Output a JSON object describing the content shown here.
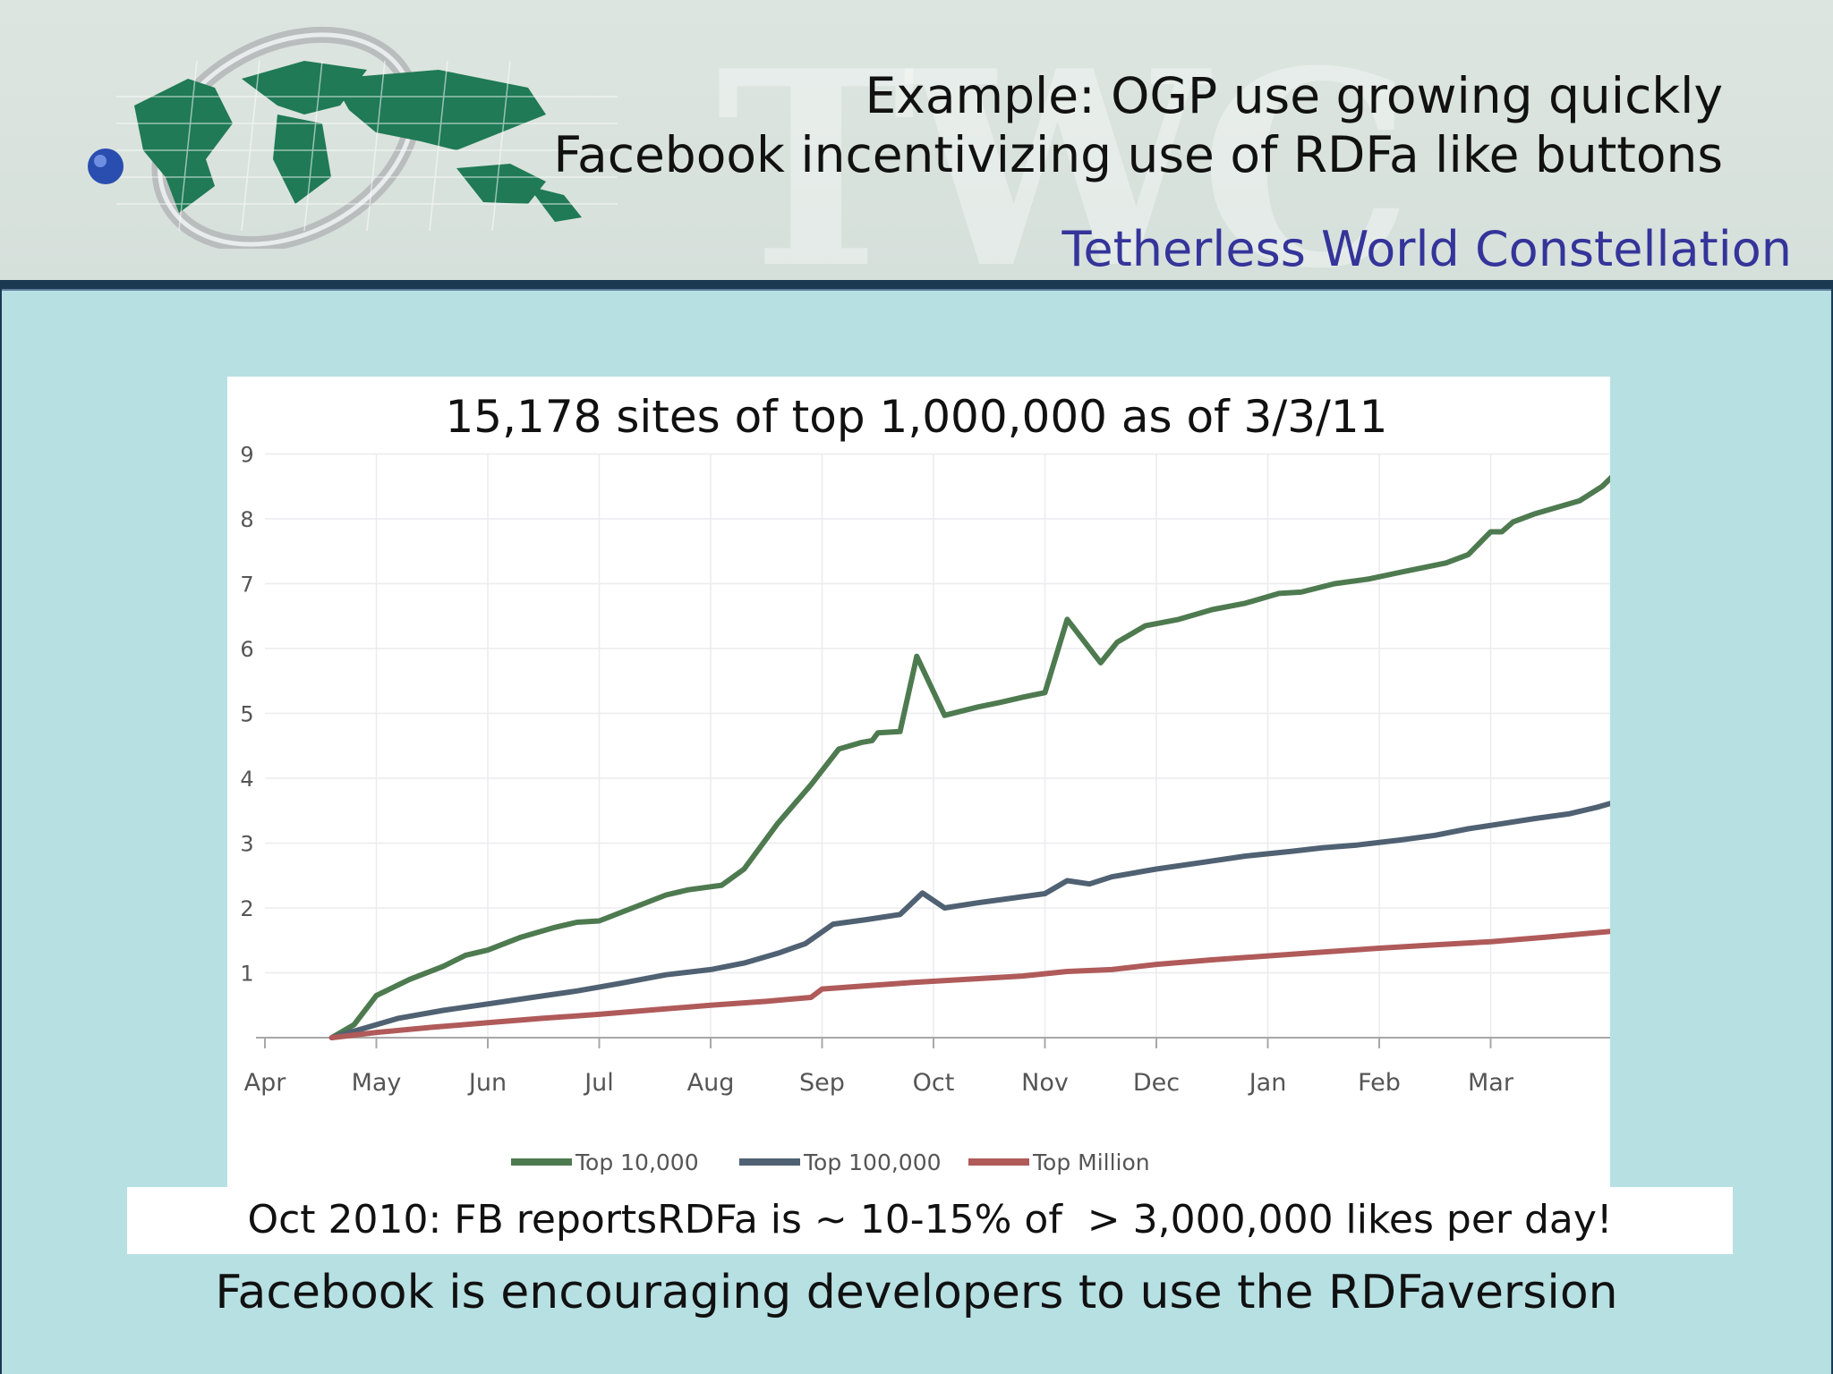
{
  "header": {
    "title_line_1": "Example: OGP use growing quickly",
    "title_line_2": "Facebook incentivizing use of RDFa like buttons",
    "organization": "Tetherless World Constellation",
    "watermark": "TWC"
  },
  "colors": {
    "background": "#b7e0e3",
    "divider": "#1b3a52",
    "organization_text": "#34349a",
    "logo_map": "#1f7a55",
    "logo_dot": "#2a4db0"
  },
  "icons": {
    "logo": "globe-map-logo"
  },
  "chart_data": {
    "type": "line",
    "title": "15,178 sites of top 1,000,000 as of 3/3/11",
    "xlabel": "",
    "ylabel": "",
    "x_ticks": [
      "Apr",
      "May",
      "Jun",
      "Jul",
      "Aug",
      "Sep",
      "Oct",
      "Nov",
      "Dec",
      "Jan",
      "Feb",
      "Mar"
    ],
    "y_ticks": [
      "1",
      "2",
      "3",
      "4",
      "5",
      "6",
      "7",
      "8",
      "9"
    ],
    "ylim": [
      0,
      9
    ],
    "xlim": [
      0,
      12
    ],
    "grid": true,
    "legend_position": "bottom",
    "series": [
      {
        "name": "Top 10,000",
        "color": "#4e7a50",
        "points": [
          [
            0.6,
            0
          ],
          [
            0.8,
            0.2
          ],
          [
            1.0,
            0.65
          ],
          [
            1.3,
            0.9
          ],
          [
            1.6,
            1.1
          ],
          [
            1.8,
            1.27
          ],
          [
            2.0,
            1.35
          ],
          [
            2.3,
            1.55
          ],
          [
            2.6,
            1.7
          ],
          [
            2.8,
            1.78
          ],
          [
            3.0,
            1.8
          ],
          [
            3.3,
            2.0
          ],
          [
            3.6,
            2.2
          ],
          [
            3.8,
            2.28
          ],
          [
            4.1,
            2.35
          ],
          [
            4.3,
            2.6
          ],
          [
            4.6,
            3.3
          ],
          [
            4.9,
            3.9
          ],
          [
            5.15,
            4.45
          ],
          [
            5.35,
            4.55
          ],
          [
            5.45,
            4.58
          ],
          [
            5.5,
            4.7
          ],
          [
            5.7,
            4.72
          ],
          [
            5.85,
            5.88
          ],
          [
            6.1,
            4.97
          ],
          [
            6.4,
            5.1
          ],
          [
            6.6,
            5.17
          ],
          [
            6.8,
            5.25
          ],
          [
            7.0,
            5.32
          ],
          [
            7.2,
            6.45
          ],
          [
            7.5,
            5.78
          ],
          [
            7.65,
            6.1
          ],
          [
            7.9,
            6.35
          ],
          [
            8.2,
            6.45
          ],
          [
            8.5,
            6.6
          ],
          [
            8.8,
            6.7
          ],
          [
            9.1,
            6.85
          ],
          [
            9.3,
            6.87
          ],
          [
            9.6,
            7.0
          ],
          [
            9.9,
            7.07
          ],
          [
            10.2,
            7.18
          ],
          [
            10.4,
            7.25
          ],
          [
            10.6,
            7.32
          ],
          [
            10.8,
            7.45
          ],
          [
            11.0,
            7.8
          ],
          [
            11.1,
            7.8
          ],
          [
            11.2,
            7.95
          ],
          [
            11.4,
            8.08
          ],
          [
            11.6,
            8.18
          ],
          [
            11.8,
            8.28
          ],
          [
            12.0,
            8.5
          ],
          [
            12.15,
            8.75
          ]
        ]
      },
      {
        "name": "Top 100,000",
        "color": "#4f6172",
        "points": [
          [
            0.6,
            0
          ],
          [
            0.9,
            0.15
          ],
          [
            1.2,
            0.3
          ],
          [
            1.6,
            0.42
          ],
          [
            2.0,
            0.52
          ],
          [
            2.4,
            0.62
          ],
          [
            2.8,
            0.72
          ],
          [
            3.2,
            0.84
          ],
          [
            3.6,
            0.97
          ],
          [
            4.0,
            1.05
          ],
          [
            4.3,
            1.15
          ],
          [
            4.6,
            1.3
          ],
          [
            4.85,
            1.45
          ],
          [
            5.1,
            1.75
          ],
          [
            5.4,
            1.82
          ],
          [
            5.7,
            1.9
          ],
          [
            5.9,
            2.23
          ],
          [
            6.1,
            2.0
          ],
          [
            6.4,
            2.08
          ],
          [
            6.7,
            2.15
          ],
          [
            7.0,
            2.22
          ],
          [
            7.2,
            2.42
          ],
          [
            7.4,
            2.37
          ],
          [
            7.6,
            2.48
          ],
          [
            8.0,
            2.6
          ],
          [
            8.4,
            2.7
          ],
          [
            8.8,
            2.8
          ],
          [
            9.2,
            2.87
          ],
          [
            9.5,
            2.93
          ],
          [
            9.8,
            2.97
          ],
          [
            10.2,
            3.05
          ],
          [
            10.5,
            3.12
          ],
          [
            10.8,
            3.22
          ],
          [
            11.1,
            3.3
          ],
          [
            11.4,
            3.38
          ],
          [
            11.7,
            3.45
          ],
          [
            11.95,
            3.55
          ],
          [
            12.15,
            3.65
          ]
        ]
      },
      {
        "name": "Top Million",
        "color": "#b05a5a",
        "points": [
          [
            0.6,
            0
          ],
          [
            1.0,
            0.08
          ],
          [
            1.5,
            0.16
          ],
          [
            2.0,
            0.23
          ],
          [
            2.5,
            0.3
          ],
          [
            3.0,
            0.36
          ],
          [
            3.5,
            0.43
          ],
          [
            4.0,
            0.5
          ],
          [
            4.5,
            0.56
          ],
          [
            4.9,
            0.62
          ],
          [
            5.0,
            0.75
          ],
          [
            5.4,
            0.8
          ],
          [
            5.8,
            0.85
          ],
          [
            6.3,
            0.9
          ],
          [
            6.8,
            0.95
          ],
          [
            7.2,
            1.02
          ],
          [
            7.6,
            1.05
          ],
          [
            8.0,
            1.13
          ],
          [
            8.5,
            1.2
          ],
          [
            9.0,
            1.26
          ],
          [
            9.5,
            1.32
          ],
          [
            10.0,
            1.38
          ],
          [
            10.5,
            1.43
          ],
          [
            11.0,
            1.48
          ],
          [
            11.5,
            1.55
          ],
          [
            12.15,
            1.65
          ]
        ]
      }
    ]
  },
  "callout": "Oct 2010: FB reportsRDFa is ~ 10-15% of  > 3,000,000 likes per day!",
  "footer": "Facebook is encouraging developers to use the RDFaversion"
}
